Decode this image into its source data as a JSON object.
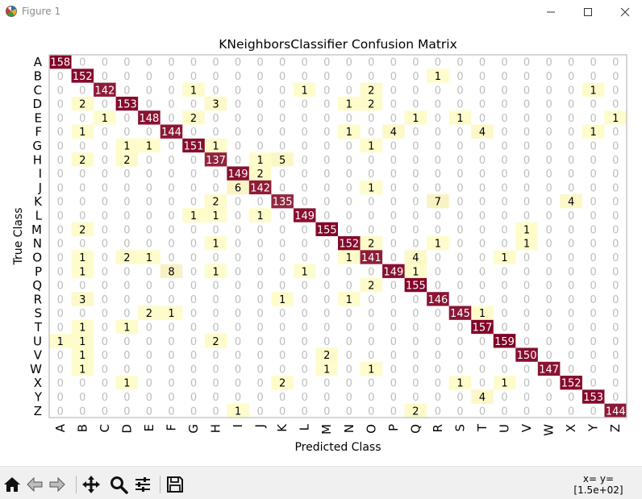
{
  "window": {
    "title": "Figure 1",
    "icon": "matplotlib-logo-icon",
    "controls": [
      "minimize-icon",
      "maximize-icon",
      "close-icon"
    ]
  },
  "chart_data": {
    "type": "heatmap",
    "title": "KNeighborsClassifier Confusion Matrix",
    "xlabel": "Predicted Class",
    "ylabel": "True Class",
    "labels": [
      "A",
      "B",
      "C",
      "D",
      "E",
      "F",
      "G",
      "H",
      "I",
      "J",
      "K",
      "L",
      "M",
      "N",
      "O",
      "P",
      "Q",
      "R",
      "S",
      "T",
      "U",
      "V",
      "W",
      "X",
      "Y",
      "Z"
    ],
    "colors": {
      "zero_cell": "#ffffff",
      "low_cell": "#fffecb",
      "high_cell": "#800026",
      "zero_text": "#bdbdbd",
      "value_text": "#000000",
      "diag_text": "#ffffff"
    },
    "matrix": [
      [
        158,
        0,
        0,
        0,
        0,
        0,
        0,
        0,
        0,
        0,
        0,
        0,
        0,
        0,
        0,
        0,
        0,
        0,
        0,
        0,
        0,
        0,
        0,
        0,
        0,
        0
      ],
      [
        0,
        152,
        0,
        0,
        0,
        0,
        0,
        0,
        0,
        0,
        0,
        0,
        0,
        0,
        0,
        0,
        0,
        1,
        0,
        0,
        0,
        0,
        0,
        0,
        0,
        0
      ],
      [
        0,
        0,
        142,
        0,
        0,
        0,
        1,
        0,
        0,
        0,
        0,
        1,
        0,
        0,
        2,
        0,
        0,
        0,
        0,
        0,
        0,
        0,
        0,
        0,
        1,
        0
      ],
      [
        0,
        2,
        0,
        153,
        0,
        0,
        0,
        3,
        0,
        0,
        0,
        0,
        0,
        1,
        2,
        0,
        0,
        0,
        0,
        0,
        0,
        0,
        0,
        0,
        0,
        0
      ],
      [
        0,
        0,
        1,
        0,
        148,
        0,
        2,
        0,
        0,
        0,
        0,
        0,
        0,
        0,
        0,
        0,
        1,
        0,
        1,
        0,
        0,
        0,
        0,
        0,
        0,
        1
      ],
      [
        0,
        1,
        0,
        0,
        0,
        144,
        0,
        0,
        0,
        0,
        0,
        0,
        0,
        1,
        0,
        4,
        0,
        0,
        0,
        4,
        0,
        0,
        0,
        0,
        1,
        0
      ],
      [
        0,
        0,
        0,
        1,
        1,
        0,
        151,
        1,
        0,
        0,
        0,
        0,
        0,
        0,
        1,
        0,
        0,
        0,
        0,
        0,
        0,
        0,
        0,
        0,
        0,
        0
      ],
      [
        0,
        2,
        0,
        2,
        0,
        0,
        0,
        137,
        0,
        1,
        5,
        0,
        0,
        0,
        0,
        0,
        0,
        0,
        0,
        0,
        0,
        0,
        0,
        0,
        0,
        0
      ],
      [
        0,
        0,
        0,
        0,
        0,
        0,
        0,
        0,
        149,
        2,
        0,
        0,
        0,
        0,
        0,
        0,
        0,
        0,
        0,
        0,
        0,
        0,
        0,
        0,
        0,
        0
      ],
      [
        0,
        0,
        0,
        0,
        0,
        0,
        0,
        0,
        6,
        142,
        0,
        0,
        0,
        0,
        1,
        0,
        0,
        0,
        0,
        0,
        0,
        0,
        0,
        0,
        0,
        0
      ],
      [
        0,
        0,
        0,
        0,
        0,
        0,
        0,
        2,
        0,
        0,
        135,
        0,
        0,
        0,
        0,
        0,
        0,
        7,
        0,
        0,
        0,
        0,
        0,
        4,
        0,
        0
      ],
      [
        0,
        0,
        0,
        0,
        0,
        0,
        1,
        1,
        0,
        1,
        0,
        149,
        0,
        0,
        0,
        0,
        0,
        0,
        0,
        0,
        0,
        0,
        0,
        0,
        0,
        0
      ],
      [
        0,
        2,
        0,
        0,
        0,
        0,
        0,
        0,
        0,
        0,
        0,
        0,
        155,
        0,
        0,
        0,
        0,
        0,
        0,
        0,
        0,
        1,
        0,
        0,
        0,
        0
      ],
      [
        0,
        0,
        0,
        0,
        0,
        0,
        0,
        1,
        0,
        0,
        0,
        0,
        0,
        152,
        2,
        0,
        0,
        1,
        0,
        0,
        0,
        1,
        0,
        0,
        0,
        0
      ],
      [
        0,
        1,
        0,
        2,
        1,
        0,
        0,
        0,
        0,
        0,
        0,
        0,
        0,
        1,
        141,
        0,
        4,
        0,
        0,
        0,
        1,
        0,
        0,
        0,
        0,
        0
      ],
      [
        0,
        1,
        0,
        0,
        0,
        8,
        0,
        1,
        0,
        0,
        0,
        1,
        0,
        0,
        0,
        149,
        1,
        0,
        0,
        0,
        0,
        0,
        0,
        0,
        0,
        0
      ],
      [
        0,
        0,
        0,
        0,
        0,
        0,
        0,
        0,
        0,
        0,
        0,
        0,
        0,
        0,
        2,
        0,
        155,
        0,
        0,
        0,
        0,
        0,
        0,
        0,
        0,
        0
      ],
      [
        0,
        3,
        0,
        0,
        0,
        0,
        0,
        0,
        0,
        0,
        1,
        0,
        0,
        1,
        0,
        0,
        0,
        146,
        0,
        0,
        0,
        0,
        0,
        0,
        0,
        0
      ],
      [
        0,
        0,
        0,
        0,
        2,
        1,
        0,
        0,
        0,
        0,
        0,
        0,
        0,
        0,
        0,
        0,
        0,
        0,
        145,
        1,
        0,
        0,
        0,
        0,
        0,
        0
      ],
      [
        0,
        1,
        0,
        1,
        0,
        0,
        0,
        0,
        0,
        0,
        0,
        0,
        0,
        0,
        0,
        0,
        0,
        0,
        0,
        157,
        0,
        0,
        0,
        0,
        0,
        0
      ],
      [
        1,
        1,
        0,
        0,
        0,
        0,
        0,
        2,
        0,
        0,
        0,
        0,
        0,
        0,
        0,
        0,
        0,
        0,
        0,
        0,
        159,
        0,
        0,
        0,
        0,
        0
      ],
      [
        0,
        1,
        0,
        0,
        0,
        0,
        0,
        0,
        0,
        0,
        0,
        0,
        2,
        0,
        0,
        0,
        0,
        0,
        0,
        0,
        0,
        150,
        0,
        0,
        0,
        0
      ],
      [
        0,
        1,
        0,
        0,
        0,
        0,
        0,
        0,
        0,
        0,
        0,
        0,
        1,
        0,
        1,
        0,
        0,
        0,
        0,
        0,
        0,
        0,
        147,
        0,
        0,
        0
      ],
      [
        0,
        0,
        0,
        1,
        0,
        0,
        0,
        0,
        0,
        0,
        2,
        0,
        0,
        0,
        0,
        0,
        0,
        0,
        1,
        0,
        1,
        0,
        0,
        152,
        0,
        0
      ],
      [
        0,
        0,
        0,
        0,
        0,
        0,
        0,
        0,
        0,
        0,
        0,
        0,
        0,
        0,
        0,
        0,
        0,
        0,
        0,
        4,
        0,
        0,
        0,
        0,
        153,
        0
      ],
      [
        0,
        0,
        0,
        0,
        0,
        0,
        0,
        0,
        1,
        0,
        0,
        0,
        0,
        0,
        0,
        0,
        2,
        0,
        0,
        0,
        0,
        0,
        0,
        0,
        0,
        144
      ]
    ]
  },
  "toolbar": {
    "buttons": [
      "home-icon",
      "back-icon",
      "forward-icon",
      "pan-icon",
      "zoom-icon",
      "configure-subplots-icon",
      "save-icon"
    ],
    "coords_line1": "x=  y=",
    "coords_line2": "[1.5e+02]"
  }
}
